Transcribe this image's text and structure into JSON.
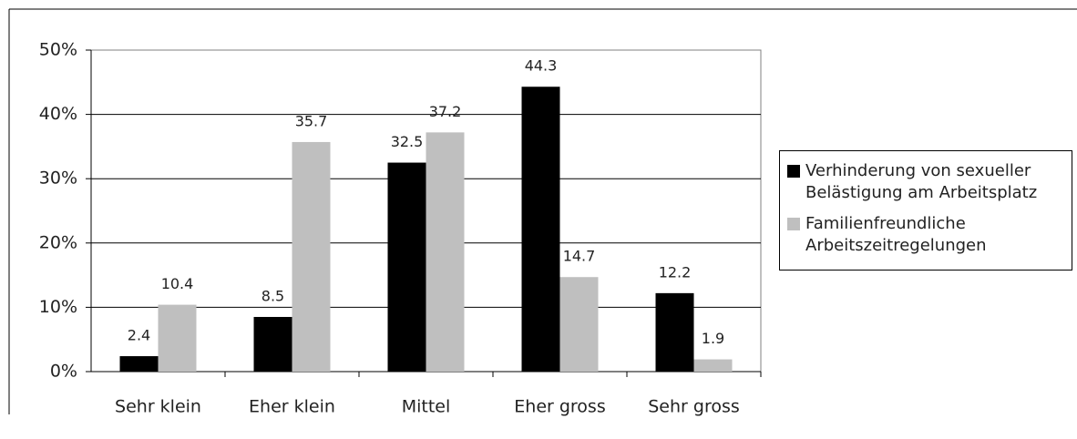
{
  "chart_data": {
    "type": "bar",
    "categories": [
      "Sehr klein",
      "Eher klein",
      "Mittel",
      "Eher gross",
      "Sehr gross"
    ],
    "series": [
      {
        "name": "Verhinderung von sexueller Belästigung am Arbeitsplatz",
        "color": "#000000",
        "values": [
          2.4,
          8.5,
          32.5,
          44.3,
          12.2
        ]
      },
      {
        "name": "Familienfreundliche Arbeitszeitregelungen",
        "color": "#bfbfbf",
        "values": [
          10.4,
          35.7,
          37.2,
          14.7,
          1.9
        ]
      }
    ],
    "ylim": [
      0,
      50
    ],
    "yticks": [
      {
        "value": 0,
        "label": "0%"
      },
      {
        "value": 10,
        "label": "10%"
      },
      {
        "value": 20,
        "label": "20%"
      },
      {
        "value": 30,
        "label": "30%"
      },
      {
        "value": 40,
        "label": "40%"
      },
      {
        "value": 50,
        "label": "50%"
      }
    ],
    "grid": true,
    "legend": "right"
  }
}
